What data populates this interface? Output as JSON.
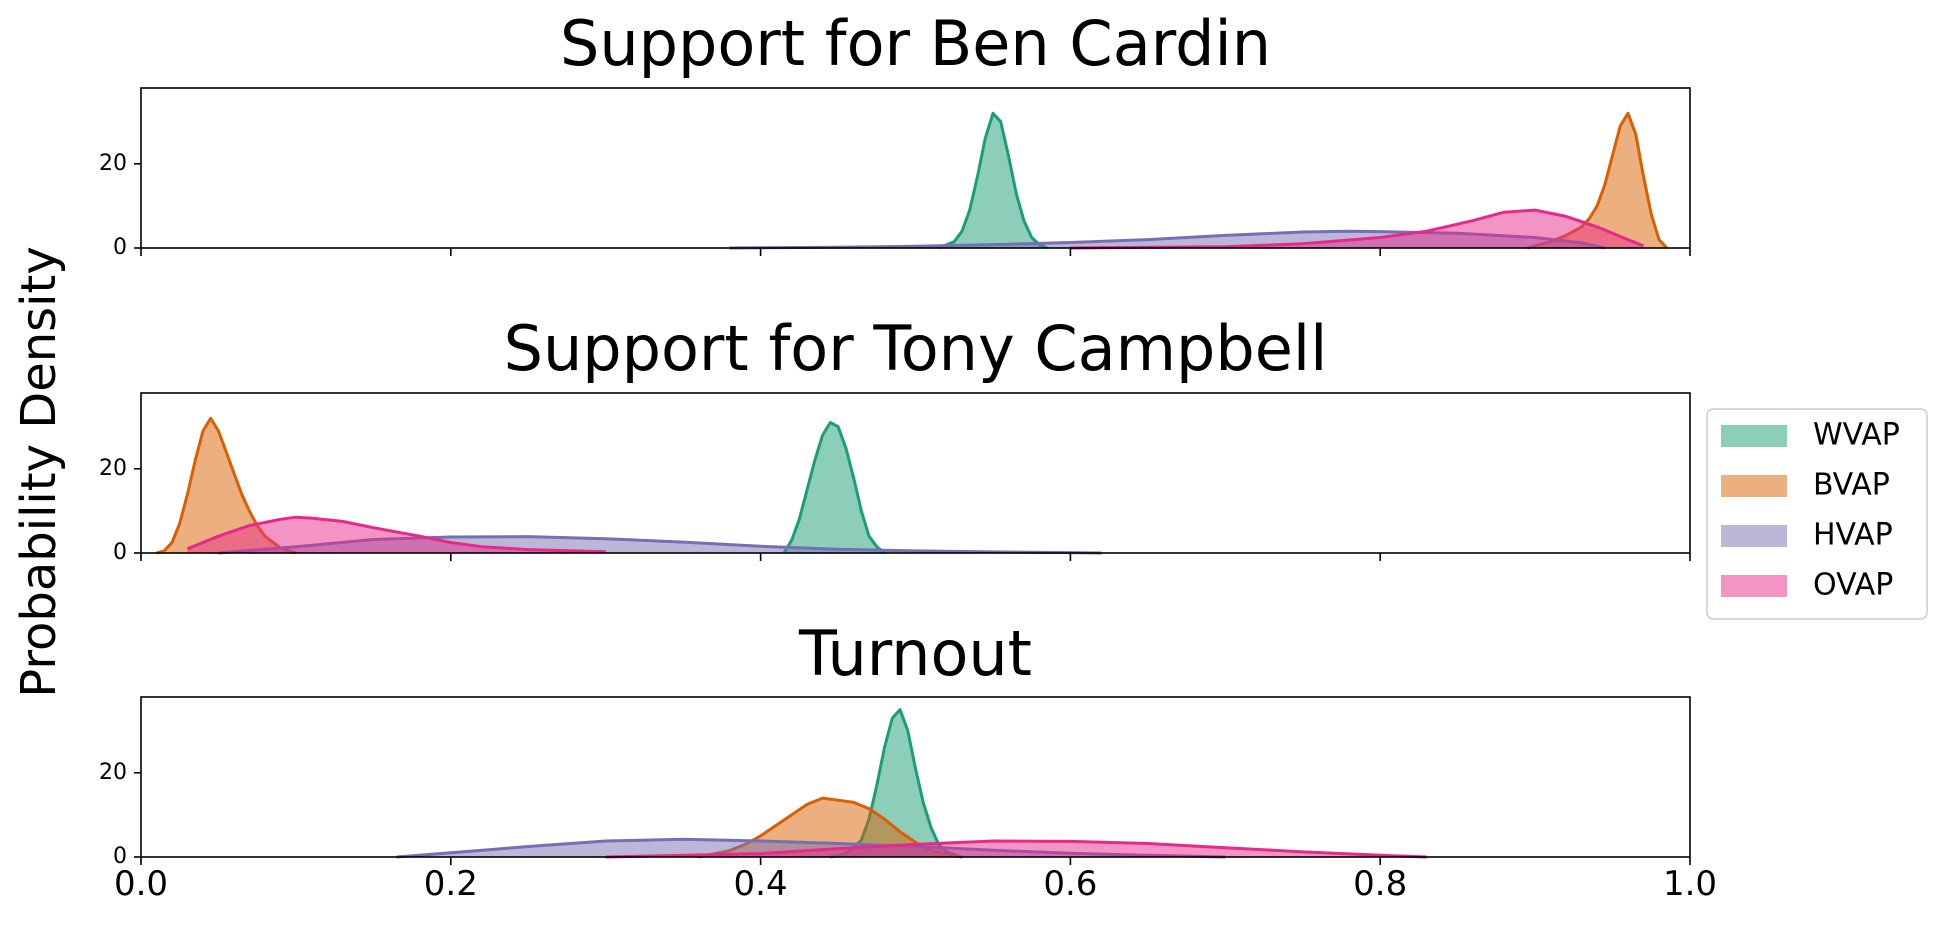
{
  "figure": {
    "ylabel": "Probability Density",
    "legend": {
      "placement": "center-right, outside axes",
      "entries": [
        {
          "label": "WVAP",
          "color": "#1b9e77"
        },
        {
          "label": "BVAP",
          "color": "#d95f02"
        },
        {
          "label": "HVAP",
          "color": "#7570b3"
        },
        {
          "label": "OVAP",
          "color": "#e7298a"
        }
      ]
    }
  },
  "chart_data": [
    {
      "type": "area",
      "title": "Support for Ben Cardin",
      "xlabel": "",
      "ylabel": "Probability Density",
      "xlim": [
        0.0,
        1.0
      ],
      "ylim": [
        0,
        38
      ],
      "yticks": [
        0,
        20
      ],
      "yticklabels": [
        "0",
        "20"
      ],
      "xticks": [
        0.0,
        0.2,
        0.4,
        0.6,
        0.8,
        1.0
      ],
      "xticklabels_visible": false,
      "grid": false,
      "series": [
        {
          "name": "WVAP",
          "color": "#1b9e77",
          "x": [
            0.515,
            0.525,
            0.53,
            0.535,
            0.54,
            0.545,
            0.55,
            0.555,
            0.56,
            0.565,
            0.57,
            0.575,
            0.58,
            0.585
          ],
          "y": [
            0,
            1.5,
            4,
            9,
            17,
            26,
            32,
            30,
            22,
            13,
            6.5,
            2.5,
            0.8,
            0
          ]
        },
        {
          "name": "BVAP",
          "color": "#d95f02",
          "x": [
            0.895,
            0.91,
            0.92,
            0.93,
            0.935,
            0.94,
            0.945,
            0.95,
            0.955,
            0.96,
            0.965,
            0.97,
            0.975,
            0.98,
            0.985
          ],
          "y": [
            0,
            1.5,
            3,
            5,
            7,
            10,
            15,
            22,
            29,
            32,
            27,
            17,
            8,
            2,
            0
          ]
        },
        {
          "name": "HVAP",
          "color": "#7570b3",
          "x": [
            0.38,
            0.45,
            0.5,
            0.55,
            0.6,
            0.65,
            0.7,
            0.75,
            0.78,
            0.8,
            0.85,
            0.9,
            0.93,
            0.945
          ],
          "y": [
            0,
            0.2,
            0.4,
            0.8,
            1.3,
            2,
            3,
            3.8,
            4,
            3.9,
            3.5,
            2.5,
            1.2,
            0
          ]
        },
        {
          "name": "OVAP",
          "color": "#e7298a",
          "x": [
            0.6,
            0.7,
            0.75,
            0.8,
            0.83,
            0.86,
            0.88,
            0.9,
            0.92,
            0.94,
            0.96,
            0.97
          ],
          "y": [
            0,
            0.3,
            1,
            2.5,
            4,
            6.5,
            8.5,
            9,
            7.5,
            5,
            2,
            0.5
          ]
        }
      ]
    },
    {
      "type": "area",
      "title": "Support for Tony Campbell",
      "xlabel": "",
      "ylabel": "Probability Density",
      "xlim": [
        0.0,
        1.0
      ],
      "ylim": [
        0,
        38
      ],
      "yticks": [
        0,
        20
      ],
      "yticklabels": [
        "0",
        "20"
      ],
      "xticks": [
        0.0,
        0.2,
        0.4,
        0.6,
        0.8,
        1.0
      ],
      "xticklabels_visible": false,
      "grid": false,
      "series": [
        {
          "name": "WVAP",
          "color": "#1b9e77",
          "x": [
            0.415,
            0.42,
            0.425,
            0.43,
            0.435,
            0.44,
            0.445,
            0.45,
            0.455,
            0.46,
            0.465,
            0.47,
            0.475,
            0.48
          ],
          "y": [
            0,
            3,
            8,
            15,
            22,
            28,
            31,
            30,
            25,
            18,
            10,
            4,
            1.5,
            0
          ]
        },
        {
          "name": "BVAP",
          "color": "#d95f02",
          "x": [
            0.01,
            0.015,
            0.02,
            0.025,
            0.03,
            0.035,
            0.04,
            0.045,
            0.05,
            0.055,
            0.06,
            0.065,
            0.07,
            0.075,
            0.08,
            0.09,
            0.1
          ],
          "y": [
            0,
            0.5,
            2.5,
            7,
            14,
            22,
            29,
            32,
            29,
            24,
            19,
            14,
            10,
            6.5,
            4,
            1.2,
            0
          ]
        },
        {
          "name": "HVAP",
          "color": "#7570b3",
          "x": [
            0.05,
            0.1,
            0.15,
            0.2,
            0.25,
            0.3,
            0.35,
            0.4,
            0.45,
            0.5,
            0.55,
            0.6,
            0.62
          ],
          "y": [
            0,
            1.5,
            3.2,
            3.8,
            3.9,
            3.4,
            2.6,
            1.6,
            0.9,
            0.5,
            0.25,
            0.1,
            0
          ]
        },
        {
          "name": "OVAP",
          "color": "#e7298a",
          "x": [
            0.03,
            0.05,
            0.07,
            0.09,
            0.1,
            0.11,
            0.13,
            0.15,
            0.18,
            0.2,
            0.22,
            0.25,
            0.3
          ],
          "y": [
            1,
            4,
            6.5,
            8,
            8.5,
            8.3,
            7.5,
            6,
            4,
            2.5,
            1.5,
            0.8,
            0.3
          ]
        }
      ]
    },
    {
      "type": "area",
      "title": "Turnout",
      "xlabel": "",
      "ylabel": "Probability Density",
      "xlim": [
        0.0,
        1.0
      ],
      "ylim": [
        0,
        38
      ],
      "yticks": [
        0,
        20
      ],
      "yticklabels": [
        "0",
        "20"
      ],
      "xticks": [
        0.0,
        0.2,
        0.4,
        0.6,
        0.8,
        1.0
      ],
      "xticklabels": [
        "0.0",
        "0.2",
        "0.4",
        "0.6",
        "0.8",
        "1.0"
      ],
      "xticklabels_visible": true,
      "grid": false,
      "series": [
        {
          "name": "WVAP",
          "color": "#1b9e77",
          "x": [
            0.445,
            0.455,
            0.465,
            0.47,
            0.475,
            0.48,
            0.485,
            0.49,
            0.495,
            0.5,
            0.505,
            0.51,
            0.515,
            0.52,
            0.53
          ],
          "y": [
            0,
            0.8,
            4,
            9,
            17,
            26,
            33,
            35,
            30,
            21,
            13,
            7,
            3,
            1.2,
            0
          ]
        },
        {
          "name": "BVAP",
          "color": "#d95f02",
          "x": [
            0.36,
            0.38,
            0.39,
            0.4,
            0.41,
            0.42,
            0.43,
            0.44,
            0.45,
            0.46,
            0.47,
            0.48,
            0.49,
            0.5,
            0.51,
            0.53
          ],
          "y": [
            0,
            1.5,
            3,
            5,
            7.5,
            10,
            12.5,
            14,
            13.5,
            13,
            11.5,
            9,
            6,
            3.5,
            1.5,
            0
          ]
        },
        {
          "name": "HVAP",
          "color": "#7570b3",
          "x": [
            0.165,
            0.2,
            0.25,
            0.3,
            0.35,
            0.4,
            0.45,
            0.5,
            0.55,
            0.6,
            0.65,
            0.7
          ],
          "y": [
            0,
            1,
            2.5,
            3.8,
            4.2,
            3.8,
            3.2,
            2.5,
            1.6,
            0.9,
            0.4,
            0
          ]
        },
        {
          "name": "OVAP",
          "color": "#e7298a",
          "x": [
            0.3,
            0.4,
            0.45,
            0.5,
            0.55,
            0.6,
            0.65,
            0.7,
            0.75,
            0.8,
            0.83
          ],
          "y": [
            0,
            0.8,
            2,
            3,
            3.8,
            3.7,
            3.2,
            2.2,
            1.2,
            0.4,
            0
          ]
        }
      ]
    }
  ]
}
